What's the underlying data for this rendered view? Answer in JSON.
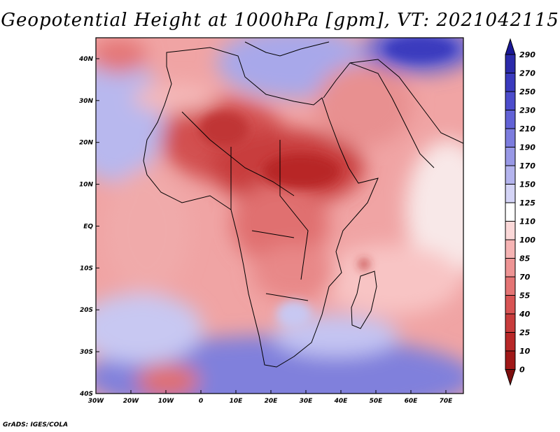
{
  "title": "Geopotential Height at 1000hPa [gpm], VT: 2021042115",
  "credit": "GrADS: IGES/COLA",
  "map": {
    "lat_range": [
      -40,
      45
    ],
    "lon_range": [
      -30,
      75
    ],
    "lat_ticks": [
      {
        "value": 40,
        "label": "40N"
      },
      {
        "value": 30,
        "label": "30N"
      },
      {
        "value": 20,
        "label": "20N"
      },
      {
        "value": 10,
        "label": "10N"
      },
      {
        "value": 0,
        "label": "EQ"
      },
      {
        "value": -10,
        "label": "10S"
      },
      {
        "value": -20,
        "label": "20S"
      },
      {
        "value": -30,
        "label": "30S"
      },
      {
        "value": -40,
        "label": "40S"
      }
    ],
    "lon_ticks": [
      {
        "value": -30,
        "label": "30W"
      },
      {
        "value": -20,
        "label": "20W"
      },
      {
        "value": -10,
        "label": "10W"
      },
      {
        "value": 0,
        "label": "0"
      },
      {
        "value": 10,
        "label": "10E"
      },
      {
        "value": 20,
        "label": "20E"
      },
      {
        "value": 30,
        "label": "30E"
      },
      {
        "value": 40,
        "label": "40E"
      },
      {
        "value": 50,
        "label": "50E"
      },
      {
        "value": 60,
        "label": "60E"
      },
      {
        "value": 70,
        "label": "70E"
      }
    ]
  },
  "colorbar": {
    "labels": [
      "290",
      "270",
      "250",
      "230",
      "210",
      "190",
      "170",
      "150",
      "125",
      "110",
      "100",
      "85",
      "70",
      "55",
      "40",
      "25",
      "10",
      "0"
    ],
    "colors": [
      "#1a1896",
      "#2b2aaa",
      "#3a3abe",
      "#4c4ccc",
      "#6262d6",
      "#7c7cde",
      "#9898e6",
      "#b4b4ee",
      "#d4d4f6",
      "#ffffff",
      "#fbd8d8",
      "#f6b4b4",
      "#ee9494",
      "#e47474",
      "#d85454",
      "#c83c3c",
      "#b82828",
      "#a01818",
      "#7c0e0e"
    ]
  }
}
